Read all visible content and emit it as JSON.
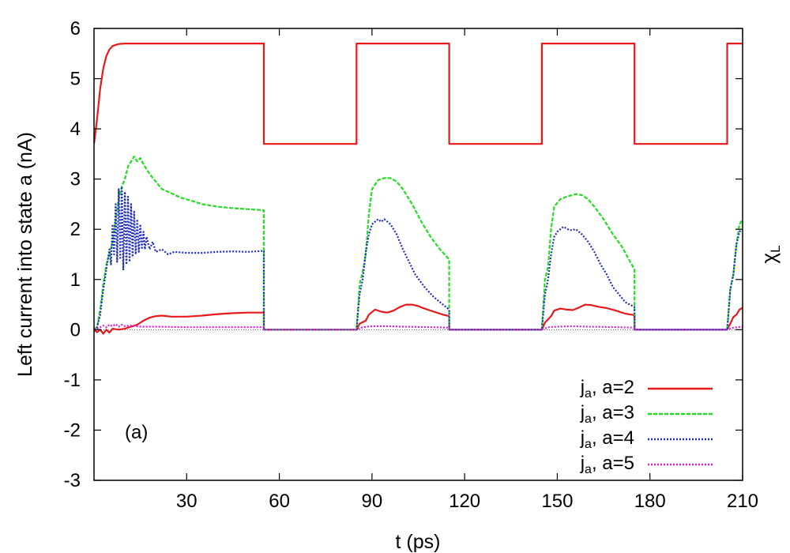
{
  "chart_data": {
    "type": "line",
    "title": "",
    "xlabel": "t (ps)",
    "ylabel": "Left current into state a (nA)",
    "y2label": "χ",
    "y2label_sub": "L",
    "annotation": "(a)",
    "xlim": [
      0,
      210
    ],
    "ylim": [
      -3,
      6
    ],
    "xticks": [
      30,
      60,
      90,
      120,
      150,
      180,
      210
    ],
    "xtick_labels": [
      "30",
      "60",
      "90",
      "120",
      "150",
      "180",
      "210"
    ],
    "yticks": [
      -3,
      -2,
      -1,
      0,
      1,
      2,
      3,
      4,
      5,
      6
    ],
    "ytick_labels": [
      "-3",
      "-2",
      "-1",
      "0",
      "1",
      "2",
      "3",
      "4",
      "5",
      "6"
    ],
    "legend_position": "bottom-right",
    "series": [
      {
        "name": "chi_L",
        "label": "",
        "color": "#e8191b",
        "style": "solid",
        "points": [
          [
            0,
            3.7
          ],
          [
            1,
            4.2
          ],
          [
            2,
            4.8
          ],
          [
            3,
            5.2
          ],
          [
            4,
            5.45
          ],
          [
            5,
            5.58
          ],
          [
            6,
            5.65
          ],
          [
            8,
            5.69
          ],
          [
            10,
            5.7
          ],
          [
            55,
            5.7
          ],
          [
            55,
            3.7
          ],
          [
            85,
            3.7
          ],
          [
            85,
            5.7
          ],
          [
            115,
            5.7
          ],
          [
            115,
            3.7
          ],
          [
            145,
            3.7
          ],
          [
            145,
            5.7
          ],
          [
            175,
            5.7
          ],
          [
            175,
            3.7
          ],
          [
            205,
            3.7
          ],
          [
            205,
            5.7
          ],
          [
            210,
            5.7
          ]
        ]
      },
      {
        "name": "a=2",
        "label_main": "j",
        "label_sub": "a",
        "label_rest": ", a=2",
        "color": "#e8191b",
        "style": "solid",
        "points": [
          [
            0,
            0
          ],
          [
            1,
            -0.05
          ],
          [
            2,
            0.0
          ],
          [
            3,
            -0.08
          ],
          [
            4,
            0.0
          ],
          [
            5,
            -0.06
          ],
          [
            6,
            0.02
          ],
          [
            8,
            0.0
          ],
          [
            10,
            0.02
          ],
          [
            12,
            0.06
          ],
          [
            14,
            0.1
          ],
          [
            16,
            0.18
          ],
          [
            18,
            0.24
          ],
          [
            20,
            0.27
          ],
          [
            22,
            0.28
          ],
          [
            25,
            0.26
          ],
          [
            30,
            0.26
          ],
          [
            35,
            0.28
          ],
          [
            40,
            0.31
          ],
          [
            45,
            0.33
          ],
          [
            50,
            0.34
          ],
          [
            55,
            0.34
          ],
          [
            55,
            0
          ],
          [
            85,
            0
          ],
          [
            86,
            0.12
          ],
          [
            88,
            0.18
          ],
          [
            89,
            0.3
          ],
          [
            91,
            0.4
          ],
          [
            93,
            0.36
          ],
          [
            95,
            0.34
          ],
          [
            97,
            0.38
          ],
          [
            99,
            0.45
          ],
          [
            101,
            0.5
          ],
          [
            103,
            0.5
          ],
          [
            105,
            0.47
          ],
          [
            107,
            0.42
          ],
          [
            110,
            0.36
          ],
          [
            113,
            0.3
          ],
          [
            115,
            0.27
          ],
          [
            115,
            0
          ],
          [
            145,
            0
          ],
          [
            146,
            0.14
          ],
          [
            148,
            0.27
          ],
          [
            149,
            0.38
          ],
          [
            151,
            0.42
          ],
          [
            153,
            0.4
          ],
          [
            155,
            0.39
          ],
          [
            157,
            0.44
          ],
          [
            159,
            0.5
          ],
          [
            161,
            0.49
          ],
          [
            163,
            0.46
          ],
          [
            166,
            0.43
          ],
          [
            169,
            0.38
          ],
          [
            172,
            0.32
          ],
          [
            175,
            0.29
          ],
          [
            175,
            0
          ],
          [
            205,
            0
          ],
          [
            206,
            0.12
          ],
          [
            207,
            0.25
          ],
          [
            208,
            0.3
          ],
          [
            209,
            0.4
          ],
          [
            210,
            0.44
          ]
        ]
      },
      {
        "name": "a=3",
        "label_main": "j",
        "label_sub": "a",
        "label_rest": ", a=3",
        "color": "#22dd22",
        "style": "dashed",
        "points": [
          [
            0,
            0
          ],
          [
            1,
            0.05
          ],
          [
            2,
            0.4
          ],
          [
            3,
            0.9
          ],
          [
            4,
            1.3
          ],
          [
            5,
            1.5
          ],
          [
            6,
            1.75
          ],
          [
            7,
            2.2
          ],
          [
            8,
            2.6
          ],
          [
            9,
            2.85
          ],
          [
            10,
            3.0
          ],
          [
            11,
            3.25
          ],
          [
            12,
            3.35
          ],
          [
            13,
            3.45
          ],
          [
            14,
            3.35
          ],
          [
            15,
            3.42
          ],
          [
            16,
            3.3
          ],
          [
            17,
            3.2
          ],
          [
            18,
            3.1
          ],
          [
            20,
            2.95
          ],
          [
            22,
            2.8
          ],
          [
            25,
            2.72
          ],
          [
            28,
            2.63
          ],
          [
            31,
            2.58
          ],
          [
            35,
            2.5
          ],
          [
            40,
            2.45
          ],
          [
            45,
            2.42
          ],
          [
            50,
            2.4
          ],
          [
            55,
            2.38
          ],
          [
            55,
            0
          ],
          [
            85,
            0
          ],
          [
            86,
            0.9
          ],
          [
            87,
            1.15
          ],
          [
            88,
            1.5
          ],
          [
            89,
            2.3
          ],
          [
            90,
            2.8
          ],
          [
            92,
            2.98
          ],
          [
            94,
            3.02
          ],
          [
            96,
            3.02
          ],
          [
            98,
            2.95
          ],
          [
            100,
            2.8
          ],
          [
            103,
            2.5
          ],
          [
            106,
            2.15
          ],
          [
            109,
            1.85
          ],
          [
            112,
            1.6
          ],
          [
            115,
            1.4
          ],
          [
            115,
            0
          ],
          [
            145,
            0
          ],
          [
            146,
            1.0
          ],
          [
            147,
            1.25
          ],
          [
            148,
            2.0
          ],
          [
            149,
            2.45
          ],
          [
            151,
            2.6
          ],
          [
            153,
            2.65
          ],
          [
            156,
            2.7
          ],
          [
            158,
            2.68
          ],
          [
            160,
            2.6
          ],
          [
            162,
            2.45
          ],
          [
            165,
            2.2
          ],
          [
            168,
            1.9
          ],
          [
            171,
            1.65
          ],
          [
            173,
            1.42
          ],
          [
            175,
            1.2
          ],
          [
            175,
            0
          ],
          [
            205,
            0
          ],
          [
            206,
            0.8
          ],
          [
            207,
            1.1
          ],
          [
            208,
            1.7
          ],
          [
            209,
            2.1
          ],
          [
            210,
            2.2
          ]
        ]
      },
      {
        "name": "a=4",
        "label_main": "j",
        "label_sub": "a",
        "label_rest": ", a=4",
        "color": "#1f2dbf",
        "style": "dotted",
        "points": [
          [
            0,
            0
          ],
          [
            1,
            0.05
          ],
          [
            2,
            0.3
          ],
          [
            3,
            0.8
          ],
          [
            4,
            1.2
          ],
          [
            5,
            1.6
          ],
          [
            5.5,
            1.3
          ],
          [
            6,
            2.1
          ],
          [
            6.5,
            1.5
          ],
          [
            7,
            2.5
          ],
          [
            7.5,
            1.35
          ],
          [
            8,
            2.8
          ],
          [
            8.5,
            1.4
          ],
          [
            9,
            2.85
          ],
          [
            9.5,
            1.2
          ],
          [
            10,
            2.75
          ],
          [
            10.5,
            1.3
          ],
          [
            11,
            2.65
          ],
          [
            11.5,
            1.35
          ],
          [
            12,
            2.5
          ],
          [
            12.5,
            1.45
          ],
          [
            13,
            2.35
          ],
          [
            13.5,
            1.5
          ],
          [
            14,
            2.2
          ],
          [
            14.5,
            1.55
          ],
          [
            15,
            2.1
          ],
          [
            15.5,
            1.6
          ],
          [
            16,
            1.95
          ],
          [
            16.5,
            1.6
          ],
          [
            17,
            1.85
          ],
          [
            18,
            1.6
          ],
          [
            19,
            1.75
          ],
          [
            20,
            1.55
          ],
          [
            22,
            1.6
          ],
          [
            24,
            1.5
          ],
          [
            26,
            1.55
          ],
          [
            30,
            1.53
          ],
          [
            35,
            1.53
          ],
          [
            40,
            1.55
          ],
          [
            45,
            1.56
          ],
          [
            50,
            1.55
          ],
          [
            55,
            1.57
          ],
          [
            55,
            0
          ],
          [
            85,
            0
          ],
          [
            86,
            0.7
          ],
          [
            87,
            1.0
          ],
          [
            88,
            1.55
          ],
          [
            89,
            1.9
          ],
          [
            90,
            2.1
          ],
          [
            92,
            2.2
          ],
          [
            93,
            2.15
          ],
          [
            94,
            2.2
          ],
          [
            96,
            2.1
          ],
          [
            98,
            1.9
          ],
          [
            100,
            1.6
          ],
          [
            102,
            1.35
          ],
          [
            104,
            1.1
          ],
          [
            107,
            0.85
          ],
          [
            110,
            0.65
          ],
          [
            113,
            0.5
          ],
          [
            115,
            0.4
          ],
          [
            115,
            0
          ],
          [
            145,
            0
          ],
          [
            146,
            0.7
          ],
          [
            147,
            1.0
          ],
          [
            148,
            1.5
          ],
          [
            149,
            1.85
          ],
          [
            150,
            1.95
          ],
          [
            152,
            2.05
          ],
          [
            154,
            1.98
          ],
          [
            156,
            2.0
          ],
          [
            158,
            1.9
          ],
          [
            160,
            1.75
          ],
          [
            162,
            1.55
          ],
          [
            164,
            1.3
          ],
          [
            166,
            1.1
          ],
          [
            168,
            0.85
          ],
          [
            170,
            0.7
          ],
          [
            172,
            0.55
          ],
          [
            175,
            0.45
          ],
          [
            175,
            0
          ],
          [
            205,
            0
          ],
          [
            206,
            0.8
          ],
          [
            207,
            1.1
          ],
          [
            208,
            1.7
          ],
          [
            209,
            1.95
          ],
          [
            210,
            2.0
          ]
        ]
      },
      {
        "name": "a=5",
        "label_main": "j",
        "label_sub": "a",
        "label_rest": ", a=5",
        "color": "#d81bd8",
        "style": "dotted",
        "points": [
          [
            0,
            0
          ],
          [
            1,
            0.02
          ],
          [
            2,
            0.05
          ],
          [
            3,
            0.08
          ],
          [
            4,
            0.05
          ],
          [
            5,
            0.1
          ],
          [
            6,
            0.07
          ],
          [
            7,
            0.11
          ],
          [
            8,
            0.06
          ],
          [
            9,
            0.1
          ],
          [
            10,
            0.07
          ],
          [
            12,
            0.08
          ],
          [
            15,
            0.06
          ],
          [
            20,
            0.06
          ],
          [
            30,
            0.05
          ],
          [
            40,
            0.05
          ],
          [
            55,
            0.05
          ],
          [
            55,
            0
          ],
          [
            85,
            0
          ],
          [
            87,
            0.05
          ],
          [
            90,
            0.07
          ],
          [
            95,
            0.07
          ],
          [
            100,
            0.06
          ],
          [
            110,
            0.05
          ],
          [
            115,
            0.04
          ],
          [
            115,
            0
          ],
          [
            145,
            0
          ],
          [
            147,
            0.05
          ],
          [
            150,
            0.06
          ],
          [
            155,
            0.07
          ],
          [
            160,
            0.06
          ],
          [
            170,
            0.05
          ],
          [
            175,
            0.04
          ],
          [
            175,
            0
          ],
          [
            205,
            0
          ],
          [
            207,
            0.04
          ],
          [
            210,
            0.06
          ]
        ]
      }
    ]
  }
}
